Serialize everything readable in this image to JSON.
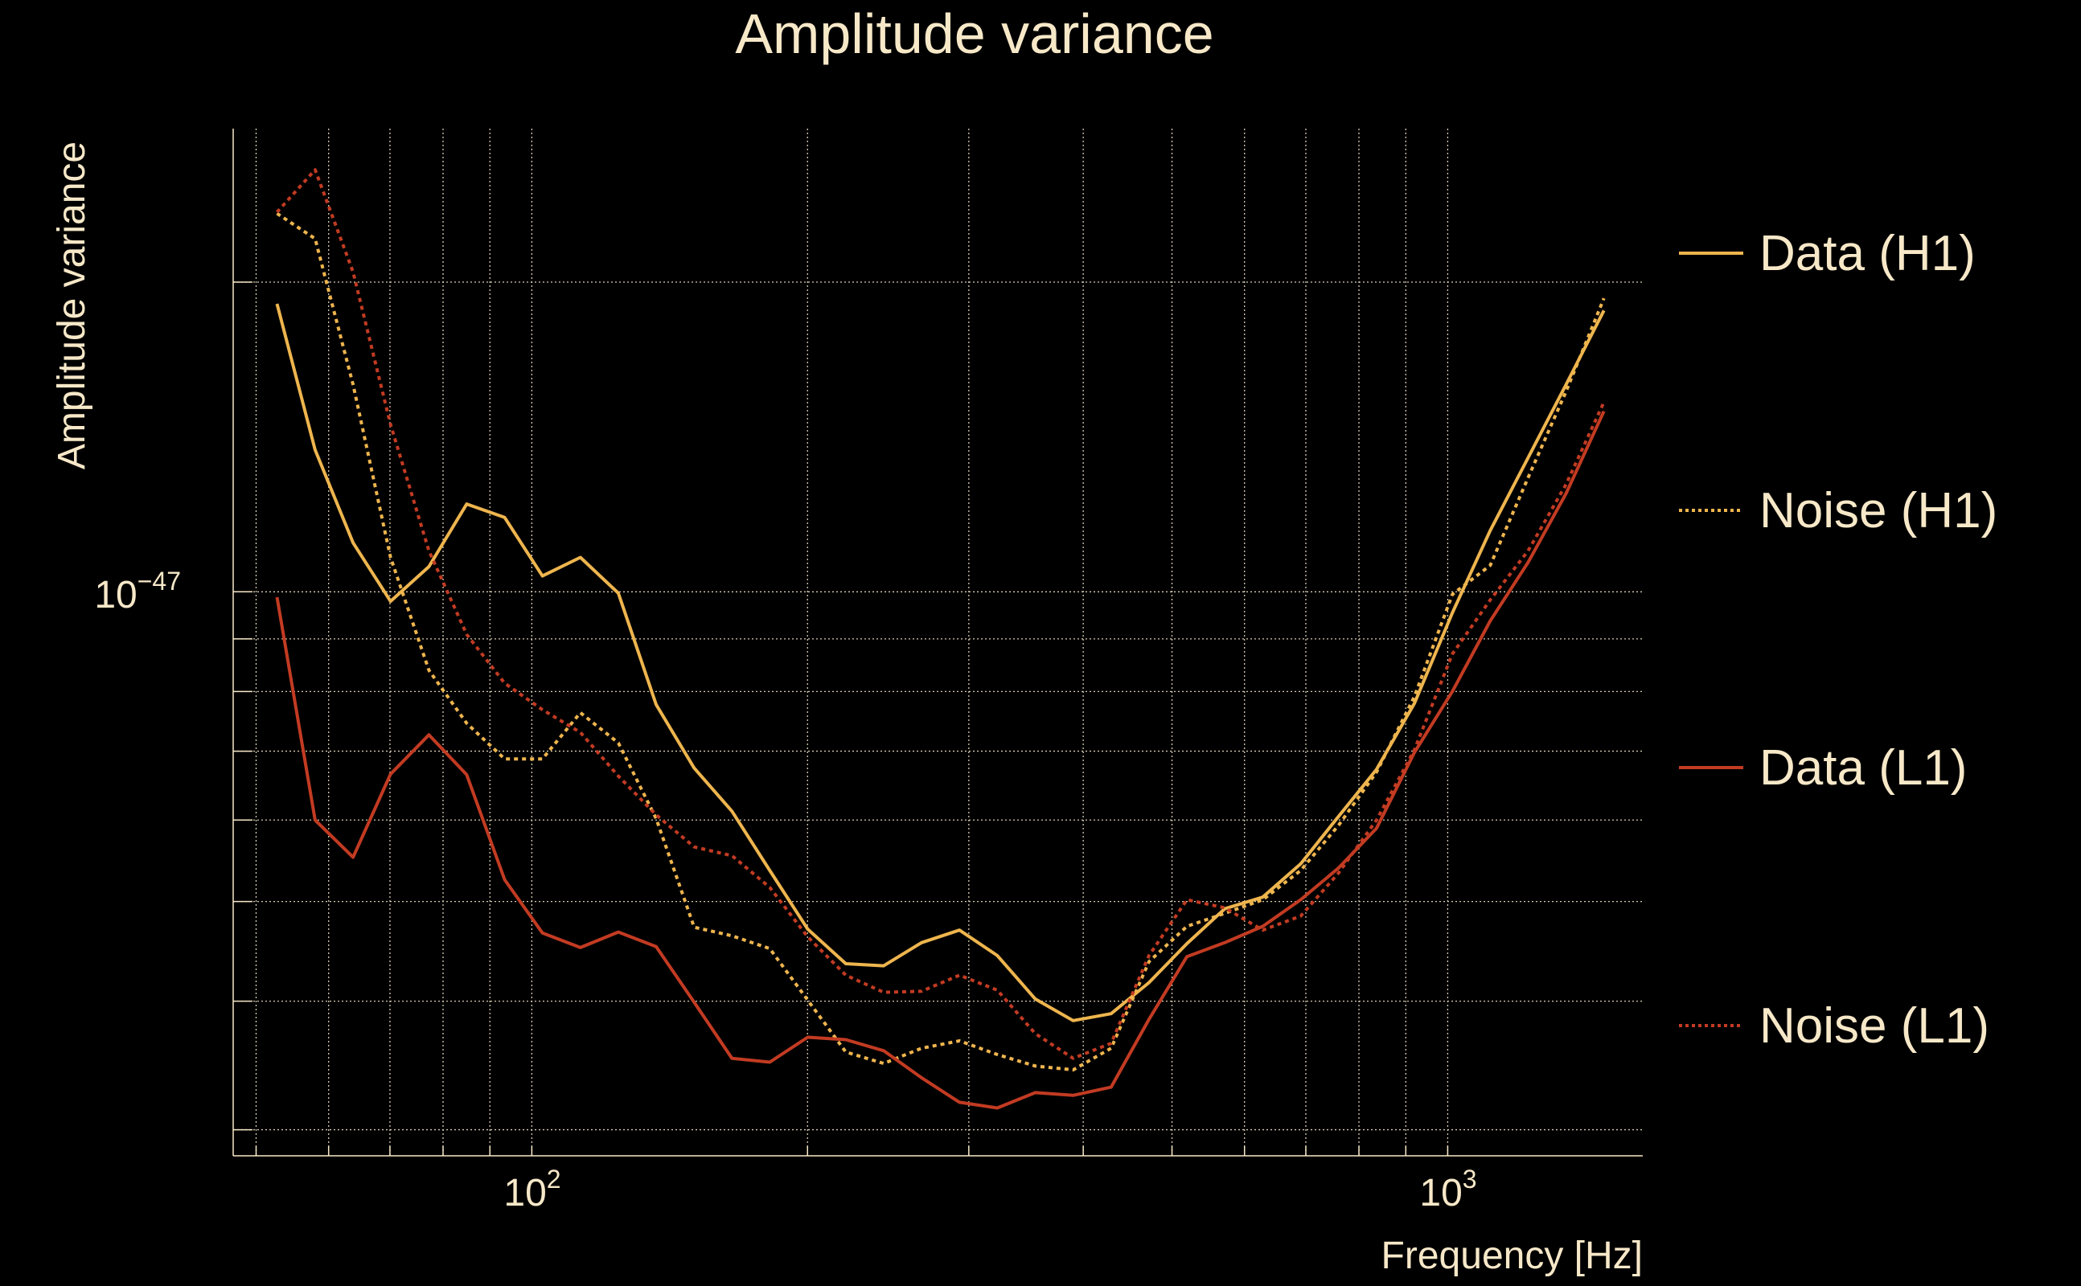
{
  "chart_data": {
    "type": "line",
    "title": "Amplitude variance",
    "xlabel": "Frequency [Hz]",
    "ylabel": "Amplitude variance",
    "xscale": "log",
    "yscale": "log",
    "xlim": [
      47.2,
      1633
    ],
    "ylim": [
      2.83e-48,
      2.82e-47
    ],
    "value_scale": 1e-48,
    "grid": true,
    "legend_placement": "right-outside",
    "x_tick_labels": [
      {
        "value": 100,
        "base": "10",
        "exp": "2"
      },
      {
        "value": 1000,
        "base": "10",
        "exp": "3"
      }
    ],
    "y_tick_labels": [
      {
        "value": 1e-47,
        "base": "10",
        "exp": "−47"
      }
    ],
    "x": [
      52.7,
      58.0,
      63.8,
      70.1,
      77.2,
      84.9,
      93.4,
      102.7,
      113.0,
      124.3,
      136.7,
      150.4,
      165.4,
      181.9,
      200.1,
      220.2,
      242.2,
      266.4,
      293.0,
      322.3,
      354.6,
      390.0,
      429.0,
      471.9,
      519.1,
      571.0,
      628.1,
      691.0,
      760.1,
      836.1,
      919.7,
      1011.7,
      1112.8,
      1224.1,
      1346.5,
      1481.2
    ],
    "series": [
      {
        "name": "Data (H1)",
        "color": "#eeb54e",
        "style": "solid",
        "values": [
          19.05,
          13.74,
          11.16,
          9.79,
          10.58,
          12.17,
          11.81,
          10.36,
          10.8,
          9.97,
          7.77,
          6.74,
          6.12,
          5.36,
          4.7,
          4.35,
          4.33,
          4.56,
          4.69,
          4.43,
          4.02,
          3.83,
          3.89,
          4.17,
          4.55,
          4.92,
          5.05,
          5.44,
          6.05,
          6.72,
          7.79,
          9.54,
          11.47,
          13.5,
          15.9,
          18.77
        ]
      },
      {
        "name": "Noise (H1)",
        "color": "#eeb54e",
        "style": "dotted",
        "values": [
          23.32,
          22.04,
          15.9,
          10.8,
          8.39,
          7.45,
          6.88,
          6.88,
          7.63,
          7.13,
          6.02,
          4.72,
          4.63,
          4.5,
          4.01,
          3.57,
          3.48,
          3.6,
          3.66,
          3.55,
          3.46,
          3.43,
          3.6,
          4.37,
          4.73,
          4.87,
          5.02,
          5.36,
          5.93,
          6.68,
          7.91,
          9.94,
          10.61,
          12.91,
          15.66,
          19.29
        ]
      },
      {
        "name": "Data (L1)",
        "color": "#c23b22",
        "style": "solid",
        "values": [
          9.88,
          6.0,
          5.52,
          6.65,
          7.26,
          6.64,
          5.25,
          4.66,
          4.51,
          4.67,
          4.52,
          3.99,
          3.52,
          3.49,
          3.69,
          3.67,
          3.58,
          3.37,
          3.19,
          3.15,
          3.26,
          3.24,
          3.3,
          3.84,
          4.42,
          4.56,
          4.73,
          5.02,
          5.39,
          5.89,
          6.98,
          8.0,
          9.37,
          10.68,
          12.46,
          14.98
        ]
      },
      {
        "name": "Noise (L1)",
        "color": "#c23b22",
        "style": "dotted",
        "values": [
          23.39,
          25.72,
          20.46,
          14.54,
          10.96,
          9.09,
          8.15,
          7.68,
          7.3,
          6.62,
          6.07,
          5.65,
          5.54,
          5.16,
          4.62,
          4.24,
          4.08,
          4.09,
          4.24,
          4.1,
          3.72,
          3.52,
          3.64,
          4.43,
          5.02,
          4.93,
          4.69,
          4.84,
          5.33,
          6.0,
          7.02,
          8.7,
          9.82,
          10.96,
          12.72,
          15.29
        ]
      }
    ]
  }
}
